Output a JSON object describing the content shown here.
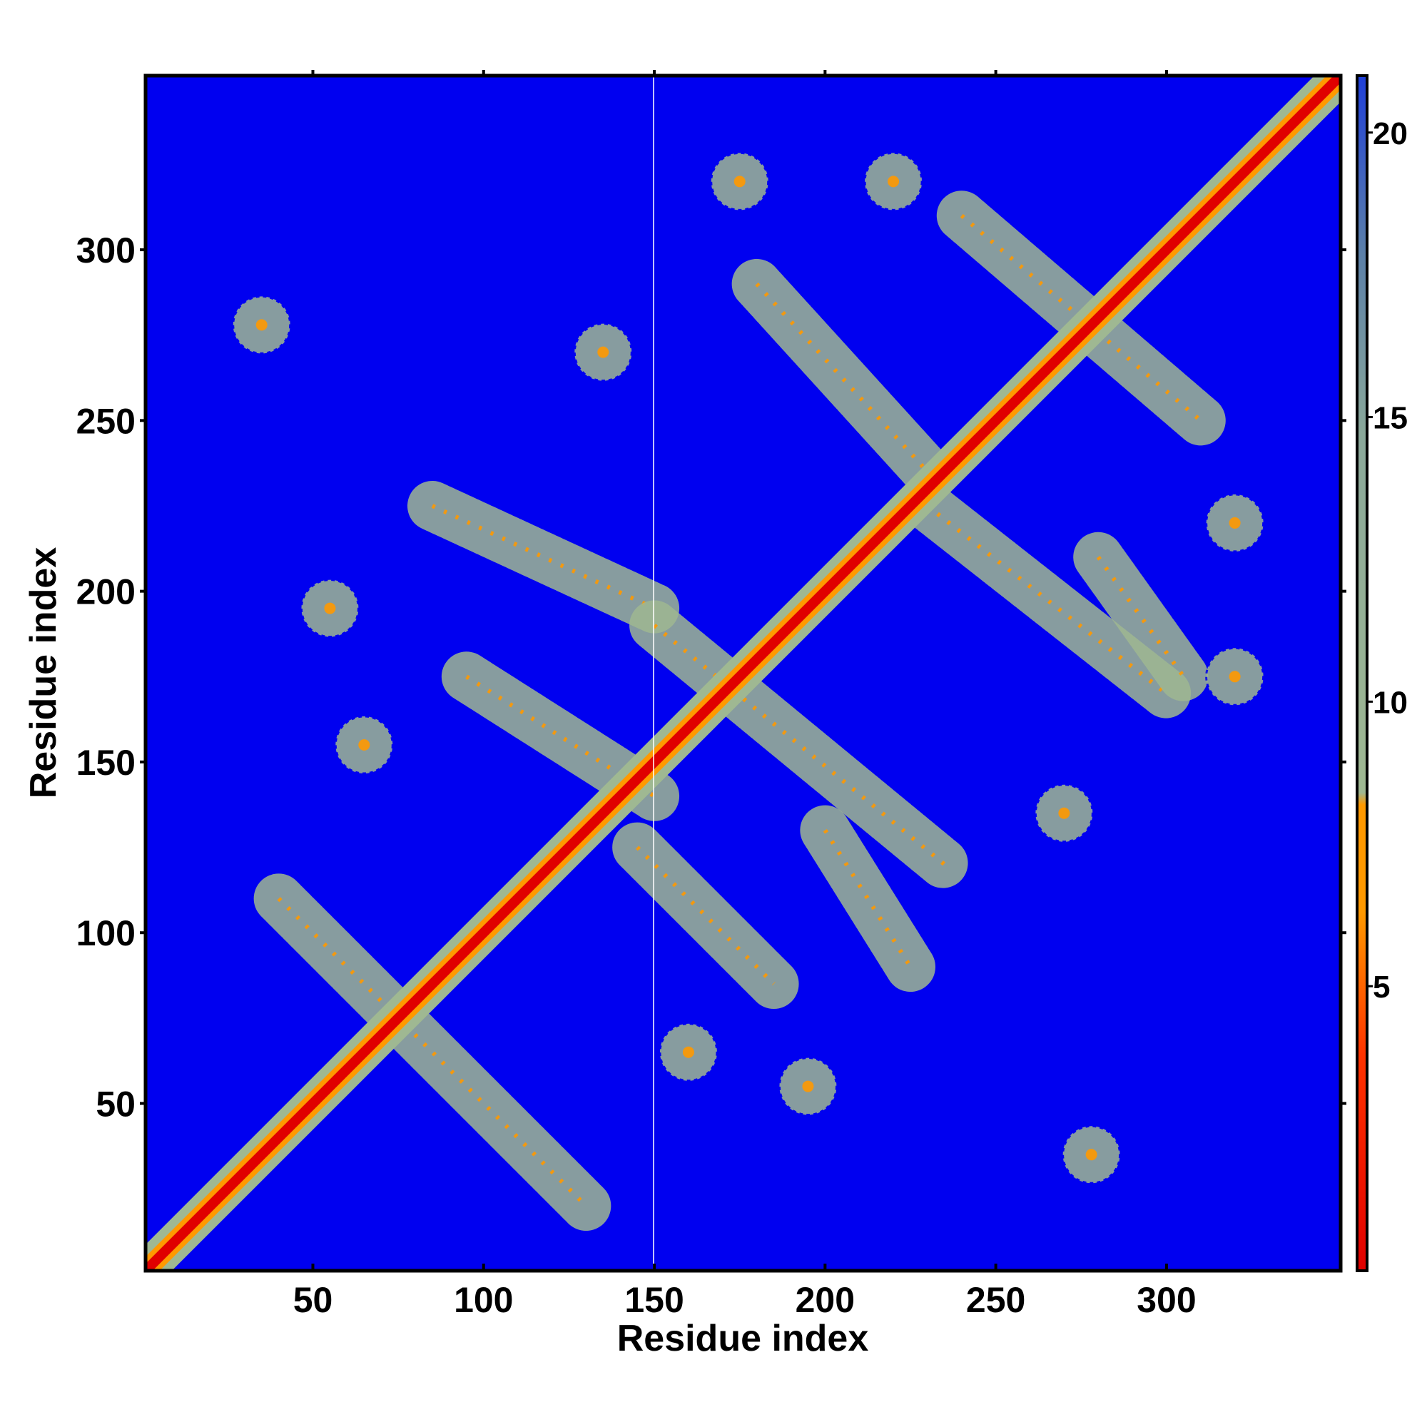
{
  "chart_data": {
    "type": "heatmap",
    "title": "",
    "xlabel": "Residue index",
    "ylabel": "Residue index",
    "xlim": [
      1,
      351
    ],
    "ylim": [
      1,
      351
    ],
    "x_ticks": [
      50,
      100,
      150,
      200,
      250,
      300
    ],
    "y_ticks": [
      50,
      100,
      150,
      200,
      250,
      300
    ],
    "colorbar": {
      "ticks": [
        5,
        10,
        15,
        20
      ],
      "range": [
        0,
        21
      ],
      "colors": {
        "close": "#e00000",
        "near": "#ff9900",
        "mid": "#9fb892",
        "far": "#0000f0",
        "top": "#4a76c7"
      }
    },
    "background_color": "#0000f0",
    "diagonal": {
      "from": 1,
      "to": 351,
      "color_core": "#e00000",
      "color_edge": "#ff9900",
      "color_halo": "#9fb892"
    },
    "contact_bands": [
      {
        "start": [
          40,
          110
        ],
        "end": [
          130,
          20
        ],
        "label": "band-anti-1"
      },
      {
        "start": [
          85,
          225
        ],
        "end": [
          150,
          195
        ],
        "label": "band-anti-2"
      },
      {
        "start": [
          150,
          190
        ],
        "end": [
          235,
          120
        ],
        "label": "band-anti-3"
      },
      {
        "start": [
          180,
          290
        ],
        "end": [
          230,
          235
        ],
        "label": "band-anti-4"
      },
      {
        "start": [
          240,
          310
        ],
        "end": [
          310,
          250
        ],
        "label": "band-anti-5"
      },
      {
        "start": [
          230,
          225
        ],
        "end": [
          300,
          170
        ],
        "label": "band-anti-6"
      },
      {
        "start": [
          95,
          175
        ],
        "end": [
          150,
          140
        ],
        "label": "band-anti-7"
      },
      {
        "start": [
          145,
          125
        ],
        "end": [
          185,
          85
        ],
        "label": "band-anti-8"
      },
      {
        "start": [
          200,
          130
        ],
        "end": [
          225,
          90
        ],
        "label": "band-anti-9"
      },
      {
        "start": [
          280,
          210
        ],
        "end": [
          305,
          175
        ],
        "label": "band-anti-10"
      }
    ],
    "contact_blobs": [
      {
        "x": 65,
        "y": 155,
        "label": "blob-1"
      },
      {
        "x": 160,
        "y": 65,
        "label": "blob-2"
      },
      {
        "x": 135,
        "y": 270,
        "label": "blob-3"
      },
      {
        "x": 270,
        "y": 135,
        "label": "blob-4"
      },
      {
        "x": 35,
        "y": 278,
        "label": "blob-5"
      },
      {
        "x": 278,
        "y": 35,
        "label": "blob-6"
      },
      {
        "x": 175,
        "y": 320,
        "label": "blob-7"
      },
      {
        "x": 320,
        "y": 175,
        "label": "blob-8"
      },
      {
        "x": 220,
        "y": 320,
        "label": "blob-9"
      },
      {
        "x": 320,
        "y": 220,
        "label": "blob-10"
      },
      {
        "x": 195,
        "y": 55,
        "label": "blob-11"
      },
      {
        "x": 55,
        "y": 195,
        "label": "blob-12"
      }
    ],
    "annotations": []
  }
}
